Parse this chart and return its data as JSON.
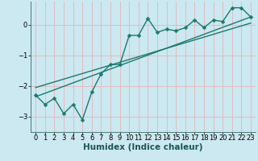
{
  "title": "",
  "xlabel": "Humidex (Indice chaleur)",
  "bg_color": "#cce8f0",
  "grid_color": "#e0b8b8",
  "line_color": "#1a7a6e",
  "xlim": [
    -0.5,
    23.5
  ],
  "ylim": [
    -3.5,
    0.75
  ],
  "yticks": [
    -3,
    -2,
    -1,
    0
  ],
  "xticks": [
    0,
    1,
    2,
    3,
    4,
    5,
    6,
    7,
    8,
    9,
    10,
    11,
    12,
    13,
    14,
    15,
    16,
    17,
    18,
    19,
    20,
    21,
    22,
    23
  ],
  "line1_x": [
    0,
    1,
    2,
    3,
    4,
    5,
    6,
    7,
    8,
    9,
    10,
    11,
    12,
    13,
    14,
    15,
    16,
    17,
    18,
    19,
    20,
    21,
    22,
    23
  ],
  "line1_y": [
    -2.3,
    -2.6,
    -2.4,
    -2.9,
    -2.6,
    -3.1,
    -2.2,
    -1.6,
    -1.3,
    -1.3,
    -0.35,
    -0.35,
    0.2,
    -0.25,
    -0.15,
    -0.2,
    -0.1,
    0.15,
    -0.1,
    0.15,
    0.1,
    0.55,
    0.55,
    0.25
  ],
  "line2_x": [
    0,
    23
  ],
  "line2_y": [
    -2.35,
    0.25
  ],
  "line3_x": [
    0,
    23
  ],
  "line3_y": [
    -2.05,
    0.05
  ],
  "marker_style": "D",
  "marker_size": 2.5,
  "line_width": 1.0,
  "tick_fontsize": 6.0,
  "xlabel_fontsize": 7.5,
  "xlabel_fontweight": "bold"
}
